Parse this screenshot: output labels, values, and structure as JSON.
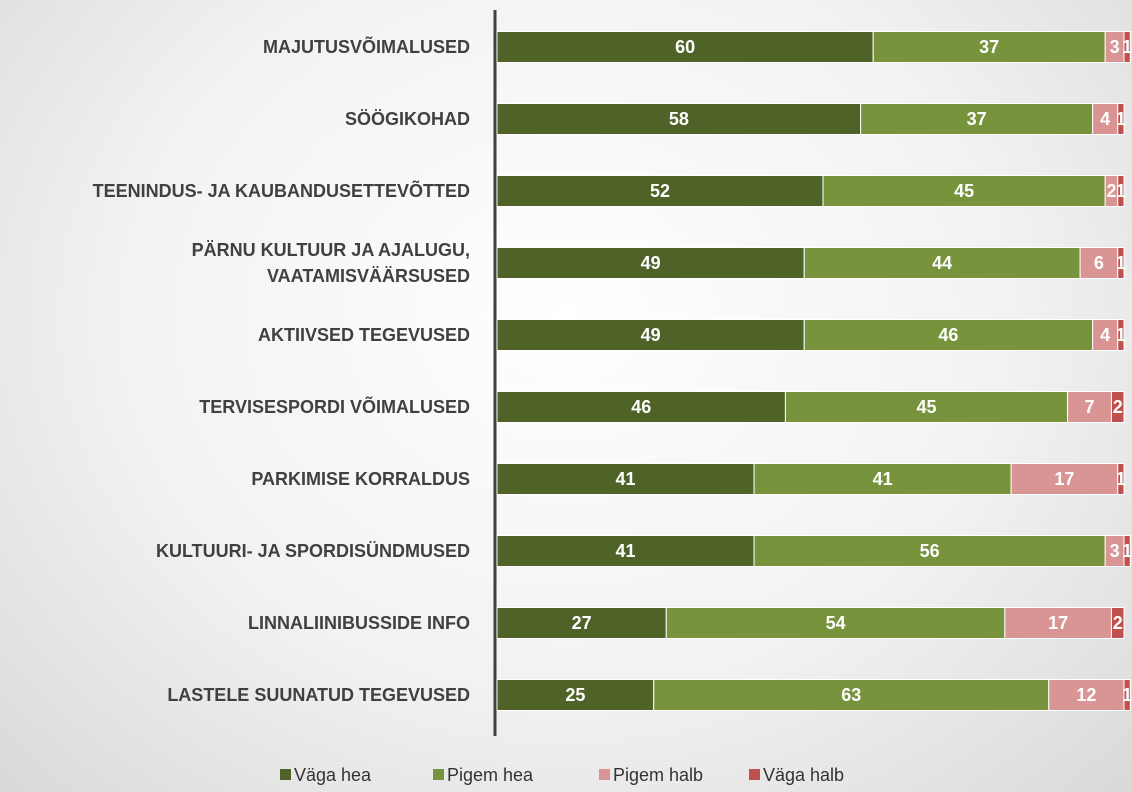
{
  "chart_data": {
    "type": "stacked-bar-horizontal",
    "categories": [
      "MAJUTUSVÕIMALUSED",
      "SÖÖGIKOHAD",
      "TEENINDUS- JA KAUBANDUSETTEVÕTTED",
      "PÄRNU KULTUUR JA AJALUGU,\nVAATAMISVÄÄRSUSED",
      "AKTIIVSED TEGEVUSED",
      "TERVISESPORDI VÕIMALUSED",
      "PARKIMISE KORRALDUS",
      "KULTUURI- JA SPORDISÜNDMUSED",
      "LINNALIINIBUSSIDE INFO",
      "LASTELE SUUNATUD TEGEVUSED"
    ],
    "series": [
      {
        "name": "Väga hea",
        "color": "#4f6228",
        "values": [
          60,
          58,
          52,
          49,
          49,
          46,
          41,
          41,
          27,
          25
        ]
      },
      {
        "name": "Pigem hea",
        "color": "#77933c",
        "values": [
          37,
          37,
          45,
          44,
          46,
          45,
          41,
          56,
          54,
          63
        ]
      },
      {
        "name": "Pigem halb",
        "color": "#d99594",
        "values": [
          3,
          4,
          2,
          6,
          4,
          7,
          17,
          3,
          17,
          12
        ]
      },
      {
        "name": "Väga halb",
        "color": "#c0504d",
        "values": [
          1,
          1,
          1,
          1,
          1,
          2,
          1,
          1,
          2,
          1
        ]
      }
    ],
    "legend": "bottom"
  }
}
